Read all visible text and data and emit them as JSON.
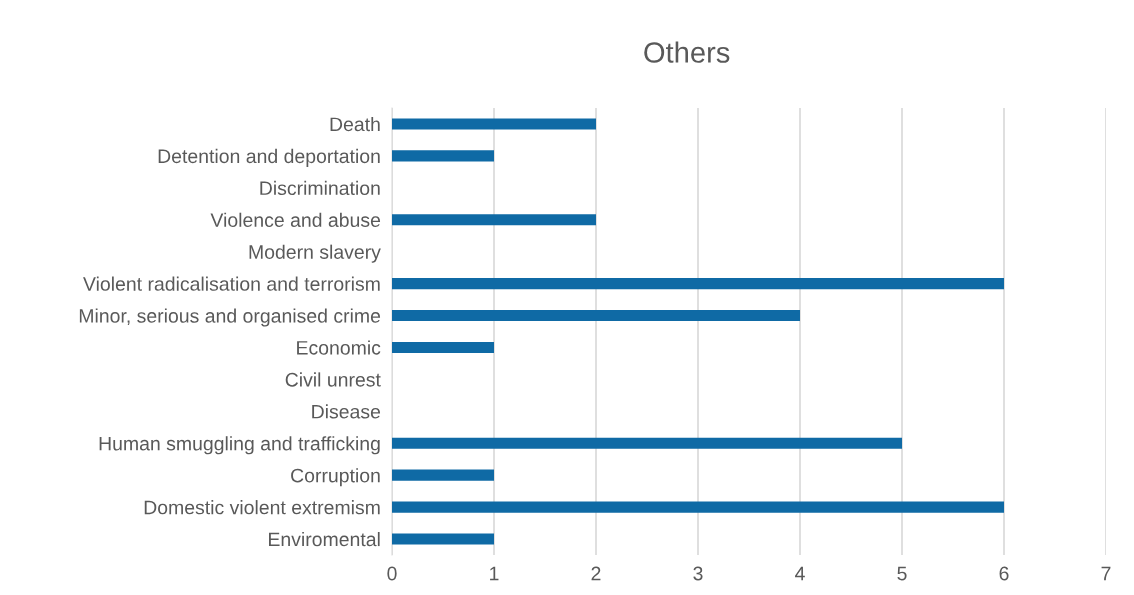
{
  "chart_data": {
    "type": "bar",
    "orientation": "horizontal",
    "title": "Others",
    "categories": [
      "Death",
      "Detention and deportation",
      "Discrimination",
      "Violence and abuse",
      "Modern slavery",
      "Violent radicalisation and terrorism",
      "Minor, serious and organised crime",
      "Economic",
      "Civil unrest",
      "Disease",
      "Human smuggling and trafficking",
      "Corruption",
      "Domestic violent extremism",
      "Enviromental"
    ],
    "values": [
      2,
      1,
      0,
      2,
      0,
      6,
      4,
      1,
      0,
      0,
      5,
      1,
      6,
      1
    ],
    "color": "#0f6aa5",
    "xlim": [
      0,
      7
    ],
    "xticks": [
      0,
      1,
      2,
      3,
      4,
      5,
      6,
      7
    ],
    "grid": "x",
    "legend": false
  }
}
